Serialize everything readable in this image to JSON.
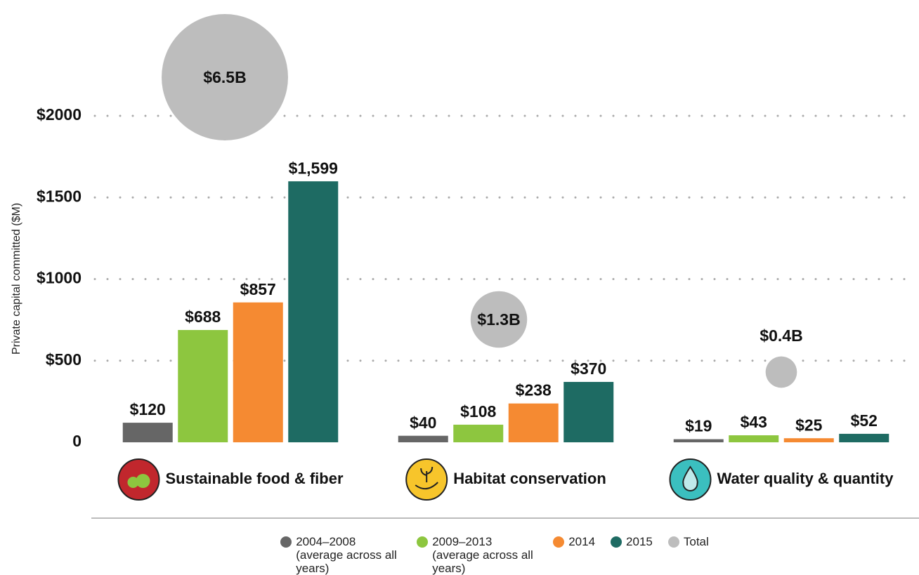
{
  "chart_data": {
    "type": "bar",
    "y_axis_label": "Private capital committed ($M)",
    "categories": [
      "Sustainable food & fiber",
      "Habitat conservation",
      "Water quality & quantity"
    ],
    "series": [
      {
        "name": "2004–2008 (average across all years)",
        "color": "#666666",
        "values": [
          120,
          40,
          19
        ],
        "value_labels": [
          "$120",
          "$40",
          "$19"
        ]
      },
      {
        "name": "2009–2013 (average across all years)",
        "color": "#8dc63f",
        "values": [
          688,
          108,
          43
        ],
        "value_labels": [
          "$688",
          "$108",
          "$43"
        ]
      },
      {
        "name": "2014",
        "color": "#f58a32",
        "values": [
          857,
          238,
          25
        ],
        "value_labels": [
          "$857",
          "$238",
          "$25"
        ]
      },
      {
        "name": "2015",
        "color": "#1e6b63",
        "values": [
          1599,
          370,
          52
        ],
        "value_labels": [
          "$1,599",
          "$370",
          "$52"
        ]
      }
    ],
    "total": {
      "name": "Total",
      "color": "#bdbdbd",
      "values": [
        6500,
        1300,
        400
      ],
      "value_labels": [
        "$6.5B",
        "$1.3B",
        "$0.4B"
      ]
    },
    "ylim": [
      0,
      2000
    ],
    "yticks": [
      0,
      {
        "value": 500,
        "label": "$500"
      },
      {
        "value": 1000,
        "label": "$1000"
      },
      {
        "value": 1500,
        "label": "$1500"
      },
      {
        "value": 2000,
        "label": "$2000"
      }
    ],
    "grid": true
  }
}
